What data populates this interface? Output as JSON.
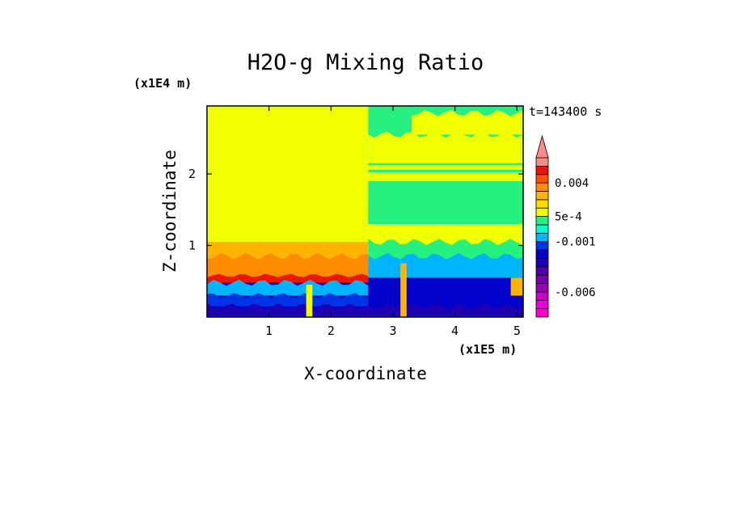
{
  "chart_data": {
    "type": "heatmap",
    "title": "H2O-g Mixing Ratio",
    "xlabel": "X-coordinate",
    "ylabel": "Z-coordinate",
    "x_scale_label": "(x1E5 m)",
    "y_scale_label": "(x1E4 m)",
    "time_label": "t=143400 s",
    "xlim": [
      0,
      5.1
    ],
    "ylim": [
      0,
      2.95
    ],
    "x_ticks": [
      1,
      2,
      3,
      4,
      5
    ],
    "x_tick_labels": [
      "1",
      "2",
      "3",
      "4",
      "5"
    ],
    "y_ticks": [
      1,
      2
    ],
    "y_tick_labels": [
      "1",
      "2"
    ],
    "colorbar": {
      "levels": [
        -0.009,
        -0.008,
        -0.007,
        -0.006,
        -0.005,
        -0.004,
        -0.003,
        -0.002,
        -0.0015,
        -0.001,
        -0.0005,
        0,
        0.0005,
        0.001,
        0.002,
        0.003,
        0.004,
        0.005,
        0.006,
        0.007
      ],
      "colors": [
        "#ff00c8",
        "#e600d6",
        "#c800c8",
        "#9b00b4",
        "#7800aa",
        "#4b00a5",
        "#1e00b4",
        "#0000c8",
        "#0032e6",
        "#00b4ff",
        "#00ffd2",
        "#28f080",
        "#f0ff00",
        "#ffdc00",
        "#ffb400",
        "#ff8c00",
        "#ff5000",
        "#f01400",
        "#ff8c8c"
      ],
      "extend": "max",
      "tick_values": [
        0.004,
        0.0005,
        -0.001,
        -0.006
      ],
      "tick_labels": [
        "0.004",
        "5e-4",
        "-0.001",
        "-0.006"
      ]
    },
    "regions": [
      {
        "x": [
          0,
          2.6
        ],
        "z": [
          1.05,
          2.95
        ],
        "color": "#f0ff00"
      },
      {
        "x": [
          0,
          2.6
        ],
        "z": [
          0.5,
          1.05
        ],
        "color": "#ffb400"
      },
      {
        "x": [
          0,
          2.6
        ],
        "z": [
          0,
          0.5
        ],
        "color": "#0000c8"
      },
      {
        "x": [
          2.6,
          5.1
        ],
        "z": [
          1.3,
          2.95
        ],
        "color": "#28f080"
      },
      {
        "x": [
          2.6,
          5.1
        ],
        "z": [
          0.75,
          1.3
        ],
        "color": "#f0ff00"
      },
      {
        "x": [
          2.6,
          5.1
        ],
        "z": [
          0,
          0.75
        ],
        "color": "#0000c8"
      }
    ],
    "features": [
      {
        "x": [
          2.6,
          5.1
        ],
        "z": [
          1.9,
          2.55
        ],
        "color": "#f0ff00"
      },
      {
        "x": [
          3.3,
          5.1
        ],
        "z": [
          2.55,
          2.85
        ],
        "color": "#f0ff00"
      },
      {
        "x": [
          2.6,
          5.1
        ],
        "z": [
          2.02,
          2.06
        ],
        "color": "#28f080"
      },
      {
        "x": [
          2.6,
          5.1
        ],
        "z": [
          2.12,
          2.15
        ],
        "color": "#28f080"
      },
      {
        "x": [
          2.6,
          5.1
        ],
        "z": [
          1.3,
          1.55
        ],
        "color": "#28f080"
      },
      {
        "x": [
          2.6,
          5.1
        ],
        "z": [
          0.75,
          1.05
        ],
        "color": "#28f080"
      },
      {
        "x": [
          2.6,
          5.1
        ],
        "z": [
          0.55,
          0.85
        ],
        "color": "#00b4ff"
      },
      {
        "x": [
          0,
          2.6
        ],
        "z": [
          0.55,
          0.85
        ],
        "color": "#ff8c00"
      },
      {
        "x": [
          0,
          2.6
        ],
        "z": [
          0.48,
          0.58
        ],
        "color": "#f01400"
      },
      {
        "x": [
          0,
          2.6
        ],
        "z": [
          0.3,
          0.48
        ],
        "color": "#00b4ff"
      },
      {
        "x": [
          0,
          2.6
        ],
        "z": [
          0.15,
          0.3
        ],
        "color": "#0032e6"
      },
      {
        "x": [
          0,
          2.6
        ],
        "z": [
          0,
          0.15
        ],
        "color": "#1e00b4"
      },
      {
        "x": [
          2.6,
          5.1
        ],
        "z": [
          0,
          0.15
        ],
        "color": "#1e00b4"
      },
      {
        "x": [
          1.6,
          1.7
        ],
        "z": [
          0,
          0.45
        ],
        "color": "#f0ff00"
      },
      {
        "x": [
          3.12,
          3.22
        ],
        "z": [
          0,
          0.75
        ],
        "color": "#ffb400"
      },
      {
        "x": [
          4.9,
          5.1
        ],
        "z": [
          0.3,
          0.55
        ],
        "color": "#ffb400"
      }
    ]
  }
}
